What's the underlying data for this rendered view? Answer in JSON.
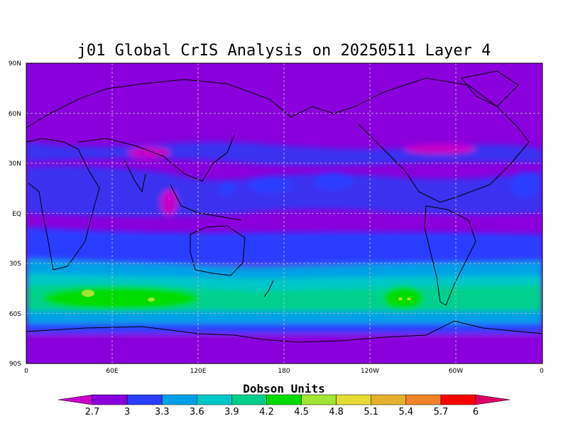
{
  "title": "j01 Global CrIS Analysis on 20250511 Layer 4",
  "lat_ticks": [
    "90N",
    "60N",
    "30N",
    "EQ",
    "30S",
    "60S",
    "90S"
  ],
  "lon_ticks": [
    "0",
    "60E",
    "120E",
    "180",
    "120W",
    "60W",
    "0"
  ],
  "colorbar": {
    "label": "Dobson Units",
    "levels": [
      "2.7",
      "3",
      "3.3",
      "3.6",
      "3.9",
      "4.2",
      "4.5",
      "4.8",
      "5.1",
      "5.4",
      "5.7",
      "6"
    ],
    "colors": [
      "#c800c8",
      "#8a00dc",
      "#2a3cff",
      "#00a0e6",
      "#00c8c8",
      "#00d08c",
      "#00dc00",
      "#a0e632",
      "#e6dc32",
      "#e6af2d",
      "#f08228",
      "#fa0000",
      "#dc0064"
    ]
  }
}
